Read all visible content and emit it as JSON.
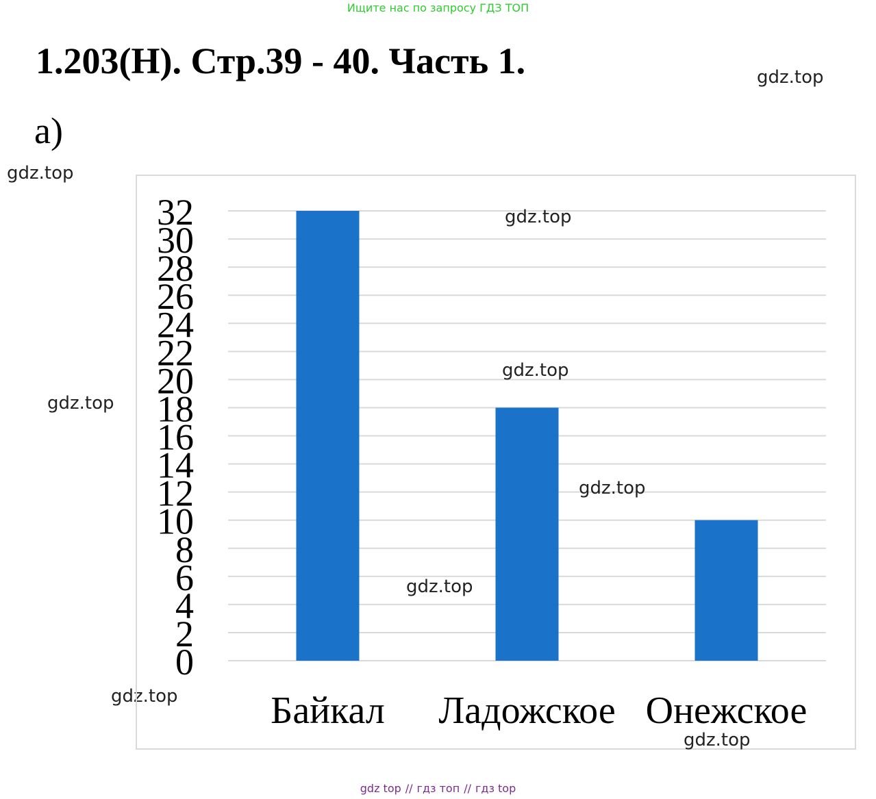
{
  "banner": "Ищите нас по запросу ГДЗ ТОП",
  "title": "1.203(Н). Стр.39 - 40. Часть 1.",
  "part": "а)",
  "watermark": "gdz.top",
  "footer": {
    "items": [
      "gdz top",
      "гдз топ",
      "гдз top"
    ],
    "separator": "//"
  },
  "colors": {
    "bar": "#1a73c8",
    "grid": "#d9d9d9",
    "banner": "#2ecc2e",
    "footer": "#7b2d8e"
  },
  "chart_data": {
    "type": "bar",
    "categories": [
      "Байкал",
      "Ладожское",
      "Онежское"
    ],
    "values": [
      32,
      18,
      10
    ],
    "title": "",
    "xlabel": "",
    "ylabel": "",
    "ylim": [
      0,
      32
    ],
    "yticks": [
      0,
      2,
      4,
      6,
      8,
      10,
      12,
      14,
      16,
      18,
      20,
      22,
      24,
      26,
      28,
      30,
      32
    ],
    "grid": true,
    "legend": "none"
  }
}
